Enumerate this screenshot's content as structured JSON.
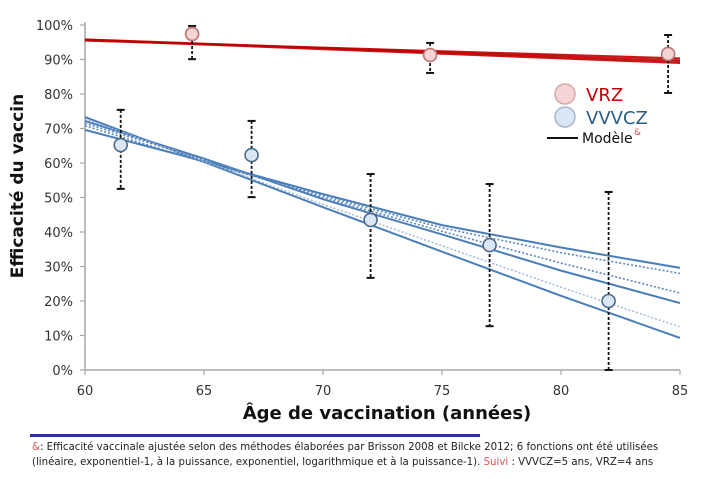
{
  "chart_data": {
    "type": "scatter",
    "title": "",
    "xlabel": "Âge de vaccination (années)",
    "ylabel": "Efficacité du vaccin",
    "xlim": [
      60,
      85
    ],
    "ylim": [
      0,
      100
    ],
    "x_ticks": [
      60,
      65,
      70,
      75,
      80,
      85
    ],
    "y_ticks": [
      0,
      10,
      20,
      30,
      40,
      50,
      60,
      70,
      80,
      90,
      100
    ],
    "y_tick_labels": [
      "0%",
      "10%",
      "20%",
      "30%",
      "40%",
      "50%",
      "60%",
      "70%",
      "80%",
      "90%",
      "100%"
    ],
    "grid": false,
    "legend_position": "top-right",
    "series": [
      {
        "name": "VRZ",
        "kind": "points-with-error",
        "color": "#c00000",
        "fill": "#f4d4d4",
        "stroke": "#c07070",
        "points": [
          {
            "x": 64.5,
            "y": 97.4,
            "low": 90.1,
            "high": 99.7
          },
          {
            "x": 74.5,
            "y": 91.3,
            "low": 86.1,
            "high": 94.8
          },
          {
            "x": 84.5,
            "y": 91.6,
            "low": 80.3,
            "high": 97.1
          }
        ]
      },
      {
        "name": "VVVCZ",
        "kind": "points-with-error",
        "color": "#2e5c8a",
        "fill": "#dbe6f4",
        "stroke": "#4a6a8a",
        "points": [
          {
            "x": 61.5,
            "y": 65.2,
            "low": 52.5,
            "high": 75.4
          },
          {
            "x": 67.0,
            "y": 62.3,
            "low": 50.1,
            "high": 72.2
          },
          {
            "x": 72.0,
            "y": 43.5,
            "low": 26.7,
            "high": 56.8
          },
          {
            "x": 77.0,
            "y": 36.2,
            "low": 12.7,
            "high": 53.9
          },
          {
            "x": 82.0,
            "y": 20.0,
            "low": 0.0,
            "high": 51.6
          }
        ]
      }
    ],
    "model_fits": {
      "VRZ": [
        {
          "style": "solid",
          "x": [
            60,
            85
          ],
          "y": [
            95.8,
            89.6
          ]
        },
        {
          "style": "solid",
          "x": [
            60,
            85
          ],
          "y": [
            95.5,
            90.3
          ]
        },
        {
          "style": "solid",
          "x": [
            60,
            85
          ],
          "y": [
            95.7,
            89.0
          ]
        }
      ],
      "VVVCZ": [
        {
          "function": "linéaire",
          "style": "solid",
          "x": [
            60,
            65,
            70,
            75,
            80,
            85
          ],
          "y": [
            73.3,
            60.3,
            47.2,
            34.3,
            21.5,
            9.3
          ]
        },
        {
          "function": "exponentiel-1",
          "style": "solid",
          "x": [
            60,
            65,
            70,
            75,
            80,
            85
          ],
          "y": [
            69.6,
            60.5,
            51.0,
            42.0,
            35.5,
            29.6
          ]
        },
        {
          "function": "à la puissance",
          "style": "dotted",
          "x": [
            60,
            65,
            70,
            75,
            80,
            85
          ],
          "y": [
            70.8,
            60.2,
            50.5,
            41.2,
            34.0,
            28.0
          ]
        },
        {
          "function": "exponentiel",
          "style": "solid",
          "x": [
            60,
            65,
            70,
            75,
            80,
            85
          ],
          "y": [
            72.2,
            61.3,
            49.5,
            39.3,
            28.8,
            19.4
          ]
        },
        {
          "function": "logarithmique",
          "style": "dotted",
          "x": [
            60,
            65,
            70,
            75,
            80,
            85
          ],
          "y": [
            71.5,
            61.0,
            50.0,
            40.2,
            31.0,
            22.3
          ]
        },
        {
          "function": "à la puissance-1",
          "style": "dotted-light",
          "x": [
            60,
            65,
            70,
            75,
            80,
            85
          ],
          "y": [
            72.8,
            60.5,
            48.0,
            36.0,
            24.0,
            12.5
          ]
        }
      ]
    },
    "legend": [
      {
        "label": "VRZ",
        "marker": "circle",
        "color": "#c00000",
        "fill": "#f4d4d4"
      },
      {
        "label": "VVVCZ",
        "marker": "circle",
        "color": "#2e5c8a",
        "fill": "#dbe6f4"
      },
      {
        "label": "Modèle",
        "marker": "line",
        "color": "#111111",
        "superscript": "&"
      }
    ]
  },
  "footnote": {
    "mark": "&",
    "line1": ": Efficacité vaccinale ajustée selon des méthodes élaborées par Brisson 2008 et Bilcke 2012; 6 fonctions ont été utilisées",
    "line2": "(linéaire, exponentiel-1, à la puissance, exponentiel, logarithmique et à la puissance-1). ",
    "suivi": "Suivi",
    "line2_end": " : VVVCZ=5 ans, VRZ=4 ans"
  }
}
